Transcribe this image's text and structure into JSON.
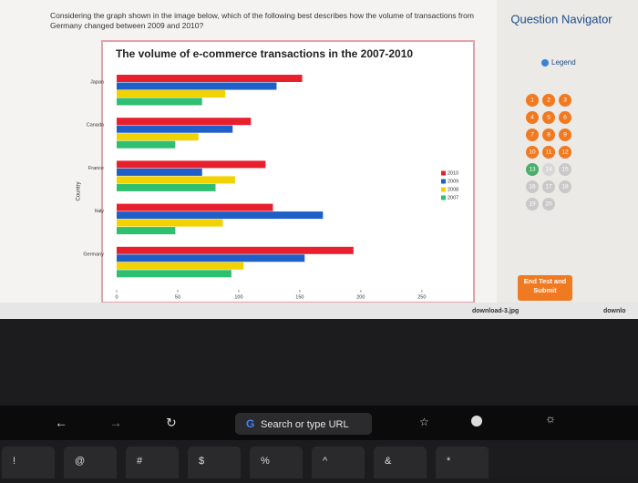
{
  "question": "Considering the graph shown in the image below, which of the following best describes how the volume of transactions from Germany changed between 2009 and 2010?",
  "chart_data": {
    "type": "bar",
    "orientation": "horizontal",
    "title": "The volume of e-commerce transactions in the 2007-2010",
    "y_label": "Country",
    "categories": [
      "Japan",
      "Canada",
      "France",
      "Italy",
      "Germany"
    ],
    "series": [
      {
        "name": "2010",
        "color": "#e8202e",
        "values": [
          152,
          110,
          122,
          128,
          194
        ]
      },
      {
        "name": "2009",
        "color": "#1f5fc8",
        "values": [
          131,
          95,
          70,
          169,
          154
        ]
      },
      {
        "name": "2008",
        "color": "#f2d200",
        "values": [
          89,
          67,
          97,
          87,
          104
        ]
      },
      {
        "name": "2007",
        "color": "#2fbf71",
        "values": [
          70,
          48,
          81,
          48,
          94
        ]
      }
    ],
    "xlim": [
      0,
      280
    ],
    "xticks": [
      0,
      50,
      100,
      150,
      200,
      250
    ]
  },
  "navigator": {
    "title": "Question Navigator",
    "legend": "Legend",
    "items": [
      {
        "label": "1",
        "color": "#f07a22"
      },
      {
        "label": "2",
        "color": "#f07a22"
      },
      {
        "label": "3",
        "color": "#f07a22"
      },
      {
        "label": "4",
        "color": "#f07a22"
      },
      {
        "label": "5",
        "color": "#f07a22"
      },
      {
        "label": "6",
        "color": "#f07a22"
      },
      {
        "label": "7",
        "color": "#f07a22"
      },
      {
        "label": "8",
        "color": "#f07a22"
      },
      {
        "label": "9",
        "color": "#f07a22"
      },
      {
        "label": "10",
        "color": "#f07a22"
      },
      {
        "label": "11",
        "color": "#f07a22"
      },
      {
        "label": "12",
        "color": "#f07a22"
      },
      {
        "label": "13",
        "color": "#4cae6a"
      },
      {
        "label": "14",
        "color": "#d7d7d7"
      },
      {
        "label": "15",
        "color": "#c9c9c9"
      },
      {
        "label": "16",
        "color": "#c9c9c9"
      },
      {
        "label": "17",
        "color": "#c9c9c9"
      },
      {
        "label": "18",
        "color": "#c9c9c9"
      },
      {
        "label": "19",
        "color": "#c9c9c9"
      },
      {
        "label": "20",
        "color": "#c9c9c9"
      }
    ],
    "submit": "End Test and Submit"
  },
  "downloads": [
    "download-3.jpg",
    "downlo"
  ],
  "touch_bar": {
    "search": "Search or type URL"
  },
  "keys": [
    "!",
    "@",
    "#",
    "$",
    "%",
    "^",
    "&",
    "*"
  ]
}
